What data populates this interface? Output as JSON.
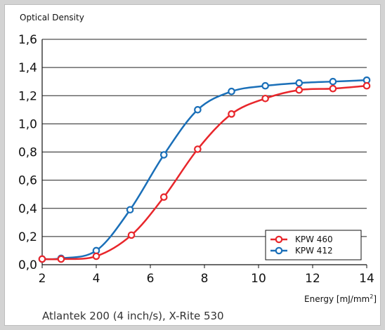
{
  "chart_data": {
    "type": "line",
    "ylabel": "Optical Density",
    "xlabel_main": "Energy [mJ/mm",
    "xlabel_sup": "2",
    "xlabel_end": "]",
    "footnote": "Atlantek 200 (4 inch/s), X-Rite 530",
    "xlim": [
      2,
      14
    ],
    "ylim": [
      0,
      1.6
    ],
    "x_ticks": [
      2,
      4,
      6,
      8,
      10,
      12,
      14
    ],
    "y_ticks": [
      0,
      0.2,
      0.4,
      0.6,
      0.8,
      1.0,
      1.2,
      1.4,
      1.6
    ],
    "x_tick_labels": [
      "2",
      "4",
      "6",
      "8",
      "10",
      "12",
      "14"
    ],
    "y_tick_labels": [
      "0,0",
      "0,2",
      "0,4",
      "0,6",
      "0,8",
      "1,0",
      "1,2",
      "1,4",
      "1,6"
    ],
    "grid": "horizontal",
    "legend_position": "bottom-right",
    "series": [
      {
        "name": "KPW 460",
        "color": "#e8262b",
        "x": [
          2.0,
          2.7,
          4.0,
          5.3,
          6.5,
          7.75,
          9.0,
          10.25,
          11.5,
          12.75,
          14.0
        ],
        "y": [
          0.04,
          0.04,
          0.06,
          0.21,
          0.48,
          0.82,
          1.07,
          1.18,
          1.24,
          1.25,
          1.27
        ]
      },
      {
        "name": "KPW 412",
        "color": "#1a6fb8",
        "x": [
          2.0,
          2.7,
          4.0,
          5.25,
          6.5,
          7.75,
          9.0,
          10.25,
          11.5,
          12.75,
          14.0
        ],
        "y": [
          0.04,
          0.045,
          0.1,
          0.39,
          0.78,
          1.1,
          1.23,
          1.27,
          1.29,
          1.3,
          1.31
        ]
      }
    ]
  }
}
